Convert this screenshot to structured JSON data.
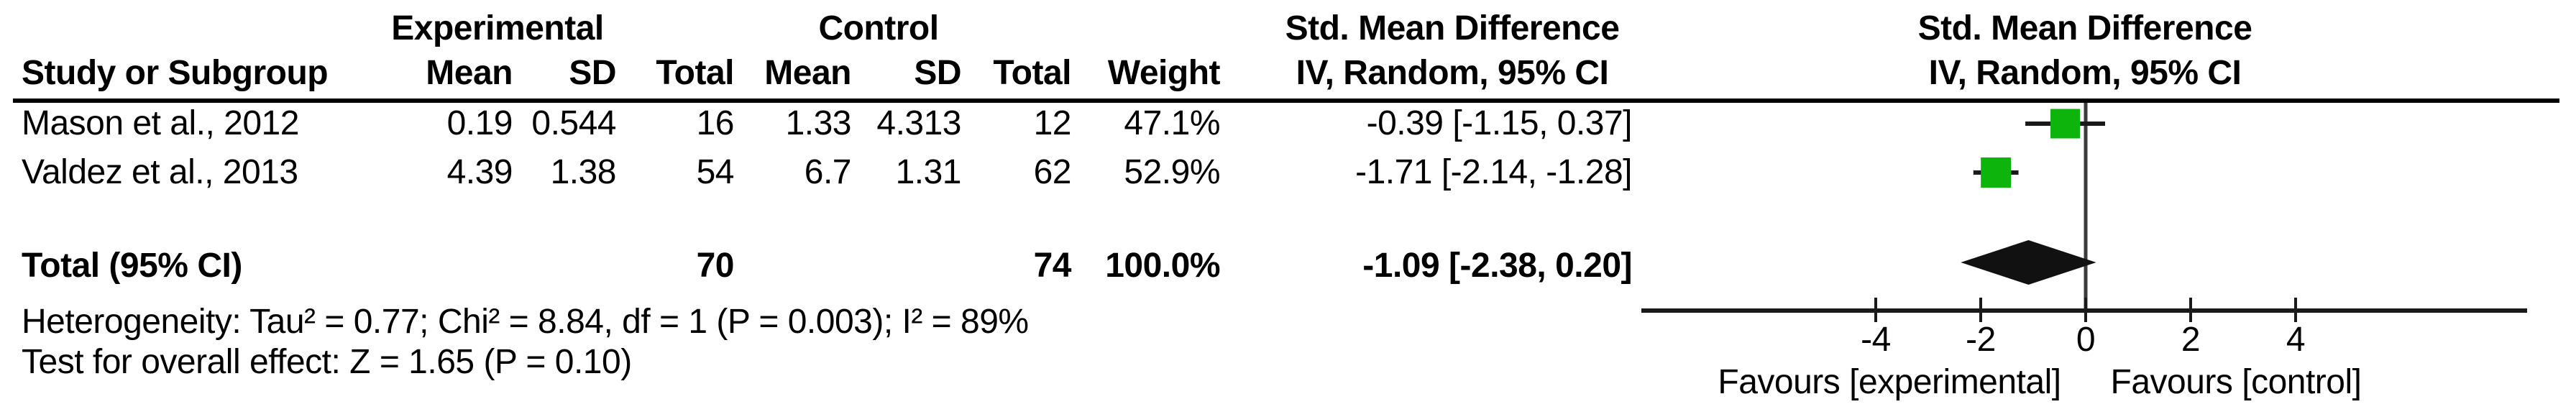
{
  "table": {
    "group_header_experimental": "Experimental",
    "group_header_control": "Control",
    "effect_header_line1": "Std. Mean Difference",
    "effect_header_line2": "IV, Random, 95% CI",
    "col_study": "Study or Subgroup",
    "col_mean_exp": "Mean",
    "col_sd_exp": "SD",
    "col_total_exp": "Total",
    "col_mean_ctl": "Mean",
    "col_sd_ctl": "SD",
    "col_total_ctl": "Total",
    "col_weight": "Weight",
    "rows": [
      {
        "study": "Mason et al., 2012",
        "mean_exp": "0.19",
        "sd_exp": "0.544",
        "total_exp": "16",
        "mean_ctl": "1.33",
        "sd_ctl": "4.313",
        "total_ctl": "12",
        "weight": "47.1%",
        "ci": "-0.39 [-1.15, 0.37]"
      },
      {
        "study": "Valdez et al., 2013",
        "mean_exp": "4.39",
        "sd_exp": "1.38",
        "total_exp": "54",
        "mean_ctl": "6.7",
        "sd_ctl": "1.31",
        "total_ctl": "62",
        "weight": "52.9%",
        "ci": "-1.71 [-2.14, -1.28]"
      }
    ],
    "total_row": {
      "label": "Total (95% CI)",
      "total_exp": "70",
      "total_ctl": "74",
      "weight": "100.0%",
      "ci": "-1.09 [-2.38, 0.20]"
    },
    "heterogeneity": "Heterogeneity: Tau² = 0.77; Chi² = 8.84, df = 1 (P = 0.003); I² = 89%",
    "overall_effect": "Test for overall effect: Z = 1.65 (P = 0.10)"
  },
  "plot": {
    "header_line1": "Std. Mean Difference",
    "header_line2": "IV, Random, 95% CI",
    "favours_left": "Favours [experimental]",
    "favours_right": "Favours [control]",
    "marker_color": "#0db40c",
    "line_color": "#1a1a1a",
    "grid_line_color": "#3b3b3b"
  },
  "chart_data": {
    "type": "forest",
    "effect_measure": "Std. Mean Difference",
    "method": "IV, Random, 95% CI",
    "xticks": [
      "-4",
      "-2",
      "0",
      "2",
      "4"
    ],
    "xlim": [
      -8.5,
      8.4
    ],
    "studies": [
      {
        "name": "Mason et al., 2012",
        "mean_exp": 0.19,
        "sd_exp": 0.544,
        "n_exp": 16,
        "mean_ctl": 1.33,
        "sd_ctl": 4.313,
        "n_ctl": 12,
        "weight_pct": 47.1,
        "smd": -0.39,
        "ci_low": -1.15,
        "ci_high": 0.37
      },
      {
        "name": "Valdez et al., 2013",
        "mean_exp": 4.39,
        "sd_exp": 1.38,
        "n_exp": 54,
        "mean_ctl": 6.7,
        "sd_ctl": 1.31,
        "n_ctl": 62,
        "weight_pct": 52.9,
        "smd": -1.71,
        "ci_low": -2.14,
        "ci_high": -1.28
      }
    ],
    "total": {
      "label": "Total (95% CI)",
      "n_exp": 70,
      "n_ctl": 74,
      "weight_pct": 100.0,
      "smd": -1.09,
      "ci_low": -2.38,
      "ci_high": 0.2
    },
    "heterogeneity": {
      "tau2": 0.77,
      "chi2": 8.84,
      "df": 1,
      "p": 0.003,
      "i2_pct": 89
    },
    "overall_effect_test": {
      "z": 1.65,
      "p": 0.1
    },
    "favours_left": "Favours [experimental]",
    "favours_right": "Favours [control]"
  }
}
